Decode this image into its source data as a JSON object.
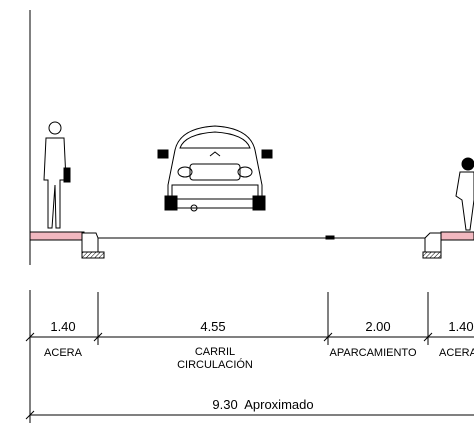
{
  "dimensions": [
    {
      "length": "1.40",
      "label": [
        "ACERA"
      ]
    },
    {
      "length": "4.55",
      "label": [
        "CARRIL",
        "CIRCULACIÓN"
      ]
    },
    {
      "length": "2.00",
      "label": [
        "APARCAMIENTO"
      ]
    },
    {
      "length": "1.40",
      "label": [
        "ACERA"
      ]
    }
  ],
  "total": "9.30  Aproximado"
}
